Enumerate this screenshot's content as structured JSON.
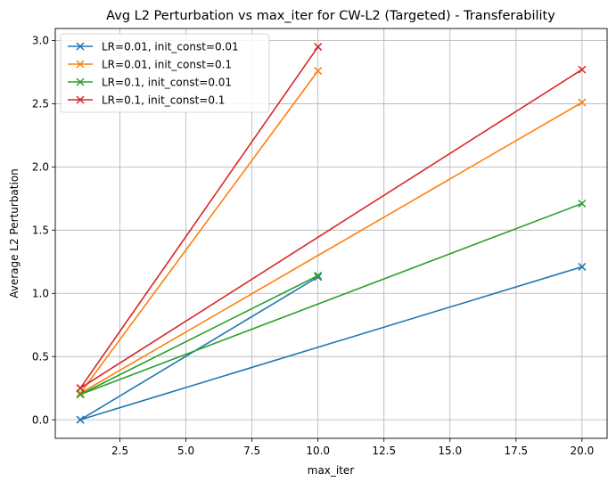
{
  "chart_data": {
    "type": "line",
    "title": "Avg L2 Perturbation vs max_iter for CW-L2 (Targeted) - Transferability",
    "xlabel": "max_iter",
    "ylabel": "Average L2 Perturbation",
    "xlim": [
      0.05,
      20.95
    ],
    "ylim": [
      -0.147,
      3.095
    ],
    "xticks": [
      2.5,
      5.0,
      7.5,
      10.0,
      12.5,
      15.0,
      17.5,
      20.0
    ],
    "xtick_labels": [
      "2.5",
      "5.0",
      "7.5",
      "10.0",
      "12.5",
      "15.0",
      "17.5",
      "20.0"
    ],
    "yticks": [
      0.0,
      0.5,
      1.0,
      1.5,
      2.0,
      2.5,
      3.0
    ],
    "ytick_labels": [
      "0.0",
      "0.5",
      "1.0",
      "1.5",
      "2.0",
      "2.5",
      "3.0"
    ],
    "grid": true,
    "legend_position": "top-left",
    "marker": "x",
    "series": [
      {
        "name": "LR=0.01, init_const=0.01",
        "color": "#1f77b4",
        "x": [
          1,
          10,
          1,
          20
        ],
        "y": [
          0.0,
          1.13,
          0.0,
          1.21
        ]
      },
      {
        "name": "LR=0.01, init_const=0.1",
        "color": "#ff7f0e",
        "x": [
          1,
          10,
          1,
          20
        ],
        "y": [
          0.21,
          2.76,
          0.21,
          2.51
        ]
      },
      {
        "name": "LR=0.1, init_const=0.01",
        "color": "#2ca02c",
        "x": [
          1,
          10,
          1,
          20
        ],
        "y": [
          0.2,
          1.14,
          0.2,
          1.71
        ]
      },
      {
        "name": "LR=0.1, init_const=0.1",
        "color": "#d62728",
        "x": [
          1,
          10,
          1,
          20
        ],
        "y": [
          0.25,
          2.95,
          0.25,
          2.77
        ]
      }
    ]
  }
}
